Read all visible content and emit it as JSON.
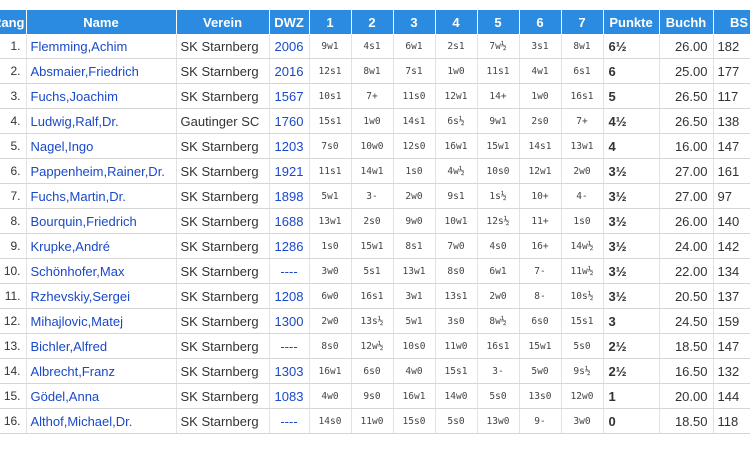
{
  "columns": [
    "Rang",
    "Name",
    "Verein",
    "DWZ",
    "1",
    "2",
    "3",
    "4",
    "5",
    "6",
    "7",
    "Punkte",
    "Buchh",
    "BS"
  ],
  "rows": [
    {
      "rank": "1.",
      "name": "Flemming,Achim",
      "verein": "SK Starnberg",
      "dwz": "2006",
      "r": [
        "9w1",
        "4s1",
        "6w1",
        "2s1",
        "7w½",
        "3s1",
        "8w1"
      ],
      "pts": "6½",
      "buchh": "26.00",
      "bs": "182"
    },
    {
      "rank": "2.",
      "name": "Absmaier,Friedrich",
      "verein": "SK Starnberg",
      "dwz": "2016",
      "r": [
        "12s1",
        "8w1",
        "7s1",
        "1w0",
        "11s1",
        "4w1",
        "6s1"
      ],
      "pts": "6",
      "buchh": "25.00",
      "bs": "177"
    },
    {
      "rank": "3.",
      "name": "Fuchs,Joachim",
      "verein": "SK Starnberg",
      "dwz": "1567",
      "r": [
        "10s1",
        "7+",
        "11s0",
        "12w1",
        "14+",
        "1w0",
        "16s1"
      ],
      "pts": "5",
      "buchh": "26.50",
      "bs": "117"
    },
    {
      "rank": "4.",
      "name": "Ludwig,Ralf,Dr.",
      "verein": "Gautinger SC",
      "dwz": "1760",
      "r": [
        "15s1",
        "1w0",
        "14s1",
        "6s½",
        "9w1",
        "2s0",
        "7+"
      ],
      "pts": "4½",
      "buchh": "26.50",
      "bs": "138"
    },
    {
      "rank": "5.",
      "name": "Nagel,Ingo",
      "verein": "SK Starnberg",
      "dwz": "1203",
      "r": [
        "7s0",
        "10w0",
        "12s0",
        "16w1",
        "15w1",
        "14s1",
        "13w1"
      ],
      "pts": "4",
      "buchh": "16.00",
      "bs": "147"
    },
    {
      "rank": "6.",
      "name": "Pappenheim,Rainer,Dr.",
      "verein": "SK Starnberg",
      "dwz": "1921",
      "r": [
        "11s1",
        "14w1",
        "1s0",
        "4w½",
        "10s0",
        "12w1",
        "2w0"
      ],
      "pts": "3½",
      "buchh": "27.00",
      "bs": "161"
    },
    {
      "rank": "7.",
      "name": "Fuchs,Martin,Dr.",
      "verein": "SK Starnberg",
      "dwz": "1898",
      "r": [
        "5w1",
        "3-",
        "2w0",
        "9s1",
        "1s½",
        "10+",
        "4-"
      ],
      "pts": "3½",
      "buchh": "27.00",
      "bs": "97"
    },
    {
      "rank": "8.",
      "name": "Bourquin,Friedrich",
      "verein": "SK Starnberg",
      "dwz": "1688",
      "r": [
        "13w1",
        "2s0",
        "9w0",
        "10w1",
        "12s½",
        "11+",
        "1s0"
      ],
      "pts": "3½",
      "buchh": "26.00",
      "bs": "140"
    },
    {
      "rank": "9.",
      "name": "Krupke,André",
      "verein": "SK Starnberg",
      "dwz": "1286",
      "r": [
        "1s0",
        "15w1",
        "8s1",
        "7w0",
        "4s0",
        "16+",
        "14w½"
      ],
      "pts": "3½",
      "buchh": "24.00",
      "bs": "142"
    },
    {
      "rank": "10.",
      "name": "Schönhofer,Max",
      "verein": "SK Starnberg",
      "dwz": "----",
      "r": [
        "3w0",
        "5s1",
        "13w1",
        "8s0",
        "6w1",
        "7-",
        "11w½"
      ],
      "pts": "3½",
      "buchh": "22.00",
      "bs": "134"
    },
    {
      "rank": "11.",
      "name": "Rzhevskiy,Sergei",
      "verein": "SK Starnberg",
      "dwz": "1208",
      "r": [
        "6w0",
        "16s1",
        "3w1",
        "13s1",
        "2w0",
        "8-",
        "10s½"
      ],
      "pts": "3½",
      "buchh": "20.50",
      "bs": "137"
    },
    {
      "rank": "12.",
      "name": "Mihajlovic,Matej",
      "verein": "SK Starnberg",
      "dwz": "1300",
      "r": [
        "2w0",
        "13s½",
        "5w1",
        "3s0",
        "8w½",
        "6s0",
        "15s1"
      ],
      "pts": "3",
      "buchh": "24.50",
      "bs": "159"
    },
    {
      "rank": "13.",
      "name": "Bichler,Alfred",
      "verein": "SK Starnberg",
      "dwz": "----",
      "r": [
        "8s0",
        "12w½",
        "10s0",
        "11w0",
        "16s1",
        "15w1",
        "5s0"
      ],
      "pts": "2½",
      "buchh": "18.50",
      "bs": "147"
    },
    {
      "rank": "14.",
      "name": "Albrecht,Franz",
      "verein": "SK Starnberg",
      "dwz": "1303",
      "r": [
        "16w1",
        "6s0",
        "4w0",
        "15s1",
        "3-",
        "5w0",
        "9s½"
      ],
      "pts": "2½",
      "buchh": "16.50",
      "bs": "132"
    },
    {
      "rank": "15.",
      "name": "Gödel,Anna",
      "verein": "SK Starnberg",
      "dwz": "1083",
      "r": [
        "4w0",
        "9s0",
        "16w1",
        "14w0",
        "5s0",
        "13s0",
        "12w0"
      ],
      "pts": "1",
      "buchh": "20.00",
      "bs": "144"
    },
    {
      "rank": "16.",
      "name": "Althof,Michael,Dr.",
      "verein": "SK Starnberg",
      "dwz": "----",
      "r": [
        "14s0",
        "11w0",
        "15s0",
        "5s0",
        "13w0",
        "9-",
        "3w0"
      ],
      "pts": "0",
      "buchh": "18.50",
      "bs": "118"
    }
  ],
  "colors": {
    "header_bg": "#2b8be0",
    "link": "#1a49c9"
  }
}
